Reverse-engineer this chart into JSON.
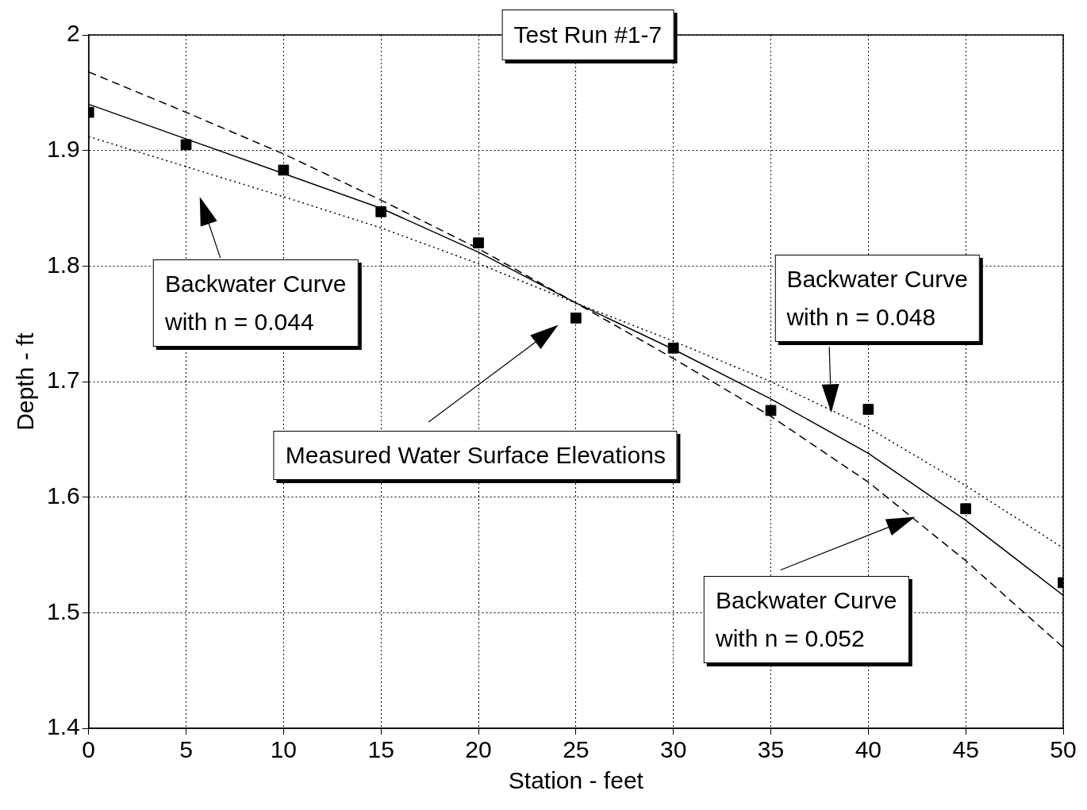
{
  "chart_data": {
    "type": "line",
    "title": "Test Run #1-7",
    "xlabel": "Station - feet",
    "ylabel": "Depth - ft",
    "xlim": [
      0,
      50
    ],
    "xticks": [
      0,
      5,
      10,
      15,
      20,
      25,
      30,
      35,
      40,
      45,
      50
    ],
    "ylim": [
      1.4,
      2
    ],
    "yticks": [
      1.4,
      1.5,
      1.6,
      1.7,
      1.8,
      1.9,
      2
    ],
    "grid": true,
    "legend": false,
    "series": [
      {
        "type": "scatter",
        "color": "#000000",
        "marker": "square",
        "x": [
          0,
          5,
          10,
          15,
          20,
          25,
          30,
          35,
          40,
          45,
          50
        ],
        "values": [
          1.933,
          1.905,
          1.883,
          1.847,
          1.82,
          1.755,
          1.729,
          1.675,
          1.676,
          1.59,
          1.526
        ]
      },
      {
        "color": "#000000",
        "marker": "none",
        "line_style": "dotted",
        "x": [
          0,
          5,
          10,
          15,
          20,
          25,
          30,
          35,
          40,
          45,
          50
        ],
        "values": [
          1.912,
          1.886,
          1.86,
          1.833,
          1.802,
          1.768,
          1.735,
          1.7,
          1.66,
          1.61,
          1.556
        ]
      },
      {
        "color": "#000000",
        "marker": "none",
        "line_style": "solid",
        "x": [
          0,
          5,
          10,
          15,
          20,
          25,
          30,
          35,
          40,
          45,
          50
        ],
        "values": [
          1.94,
          1.91,
          1.88,
          1.85,
          1.812,
          1.768,
          1.728,
          1.685,
          1.638,
          1.58,
          1.515
        ]
      },
      {
        "color": "#000000",
        "marker": "none",
        "line_style": "dashed",
        "x": [
          0,
          5,
          10,
          15,
          20,
          25,
          30,
          35,
          40,
          45,
          50
        ],
        "values": [
          1.968,
          1.933,
          1.897,
          1.857,
          1.815,
          1.768,
          1.72,
          1.67,
          1.613,
          1.545,
          1.47
        ]
      }
    ],
    "annotations": [
      "Backwater Curve\nwith n = 0.044",
      "Measured Water Surface Elevations",
      "Backwater Curve\nwith n = 0.048",
      "Backwater Curve\nwith n = 0.052"
    ]
  }
}
